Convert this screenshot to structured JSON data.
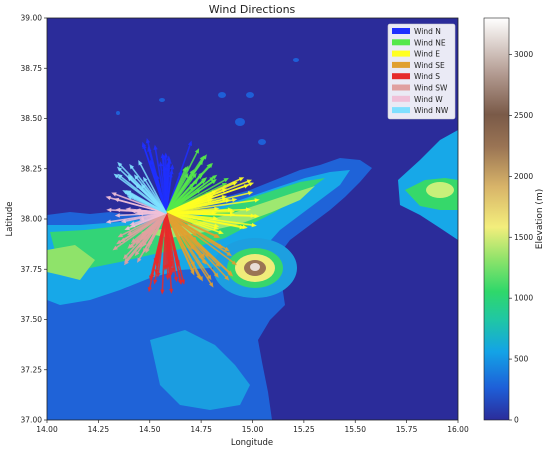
{
  "chart_data": {
    "type": "quiver",
    "title": "Wind Directions",
    "xlabel": "Longitude",
    "ylabel": "Latitude",
    "xlim": [
      14.0,
      16.0
    ],
    "ylim": [
      37.0,
      39.0
    ],
    "xticks": [
      "14.00",
      "14.25",
      "14.50",
      "14.75",
      "15.00",
      "15.25",
      "15.50",
      "15.75",
      "16.00"
    ],
    "yticks": [
      "37.00",
      "37.25",
      "37.50",
      "37.75",
      "38.00",
      "38.25",
      "38.50",
      "38.75",
      "39.00"
    ],
    "origin": {
      "lon": 14.58,
      "lat": 38.03
    },
    "legend": {
      "placement": "top-right",
      "entries": [
        {
          "name": "Wind N",
          "color": "#1f2fff"
        },
        {
          "name": "Wind NE",
          "color": "#55e84a"
        },
        {
          "name": "Wind E",
          "color": "#ffff22"
        },
        {
          "name": "Wind SE",
          "color": "#e0a030"
        },
        {
          "name": "Wind S",
          "color": "#e62a2a"
        },
        {
          "name": "Wind SW",
          "color": "#e0a0a0"
        },
        {
          "name": "Wind W",
          "color": "#f0c0d8"
        },
        {
          "name": "Wind NW",
          "color": "#7fe0ff"
        }
      ]
    },
    "colorbar": {
      "label": "Elevation (m)",
      "range": [
        0,
        3300
      ],
      "ticks": [
        "0",
        "500",
        "1000",
        "1500",
        "2000",
        "2500",
        "3000"
      ]
    },
    "grid": false
  }
}
